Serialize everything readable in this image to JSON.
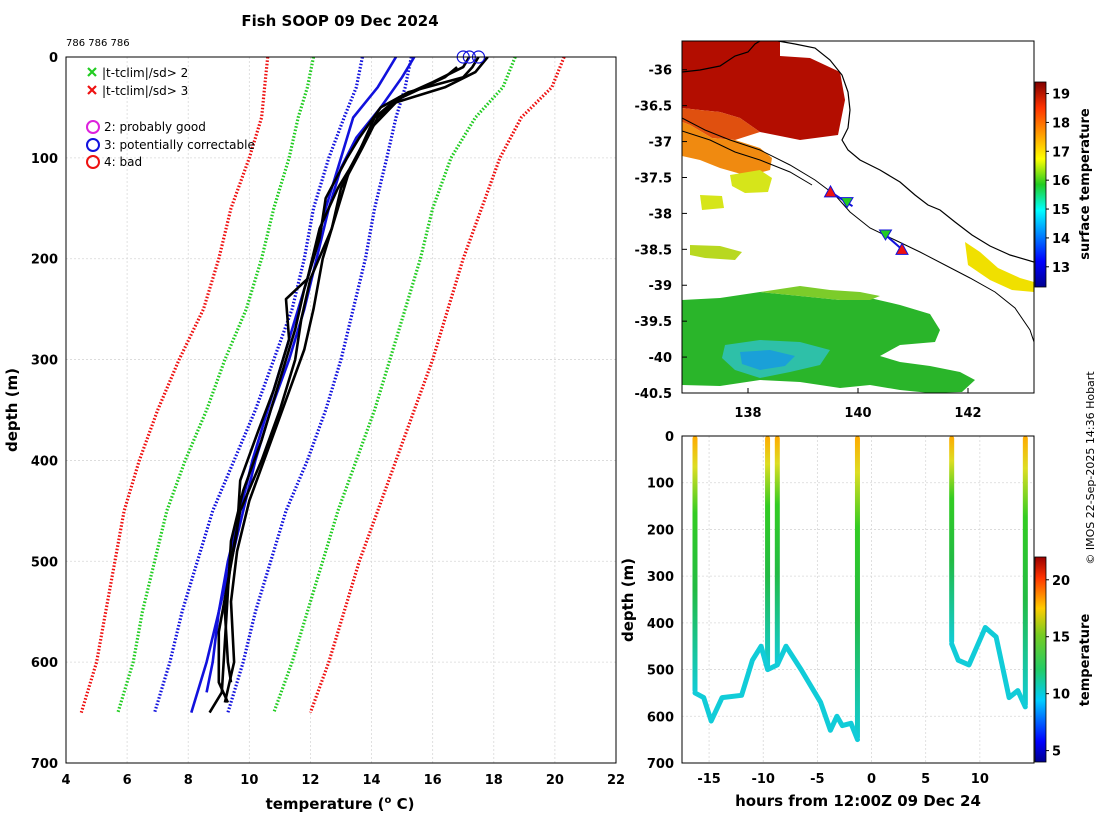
{
  "title": "Fish SOOP 09 Dec 2024",
  "profile_ids": "786 786 786",
  "credit": "© IMOS 22-Sep-2025 14:36 Hobart",
  "colors": {
    "red": "#ee1111",
    "green": "#22cc22",
    "blue": "#1111dd",
    "magenta": "#dd22dd",
    "black": "#000000",
    "cyan": "#11ccd8"
  },
  "legend": {
    "crosses": [
      {
        "label": "|t-tclim|/sd> 2",
        "color": "#22cc22"
      },
      {
        "label": "|t-tclim|/sd> 3",
        "color": "#ee1111"
      }
    ],
    "circles": [
      {
        "label": "2: probably good",
        "color": "#dd22dd"
      },
      {
        "label": "3: potentially correctable",
        "color": "#1111dd"
      },
      {
        "label": "4: bad",
        "color": "#ee1111"
      }
    ]
  },
  "chart_data": [
    {
      "id": "profile",
      "type": "line",
      "xlabel": "temperature (",
      "xlabel_sup": "o",
      "xlabel_end": " C)",
      "ylabel": "depth (m)",
      "xlim": [
        4,
        22
      ],
      "ylim": [
        700,
        0
      ],
      "xticks": [
        "4",
        "6",
        "8",
        "10",
        "12",
        "14",
        "16",
        "18",
        "20",
        "22"
      ],
      "yticks": [
        "0",
        "100",
        "200",
        "300",
        "400",
        "500",
        "600",
        "700"
      ],
      "grid": true,
      "envelopes": [
        {
          "name": "-3sd",
          "color": "#ee1111",
          "points": [
            [
              10.6,
              0
            ],
            [
              10.5,
              30
            ],
            [
              10.4,
              60
            ],
            [
              10.0,
              100
            ],
            [
              9.4,
              150
            ],
            [
              9.0,
              200
            ],
            [
              8.5,
              250
            ],
            [
              7.7,
              300
            ],
            [
              7.0,
              350
            ],
            [
              6.4,
              400
            ],
            [
              5.9,
              450
            ],
            [
              5.6,
              500
            ],
            [
              5.3,
              550
            ],
            [
              5.0,
              600
            ],
            [
              4.5,
              650
            ]
          ]
        },
        {
          "name": "-2sd",
          "color": "#22cc22",
          "points": [
            [
              12.1,
              0
            ],
            [
              11.9,
              30
            ],
            [
              11.6,
              60
            ],
            [
              11.3,
              100
            ],
            [
              10.8,
              150
            ],
            [
              10.4,
              200
            ],
            [
              9.9,
              250
            ],
            [
              9.2,
              300
            ],
            [
              8.6,
              350
            ],
            [
              7.9,
              400
            ],
            [
              7.3,
              450
            ],
            [
              6.9,
              500
            ],
            [
              6.5,
              550
            ],
            [
              6.2,
              600
            ],
            [
              5.7,
              650
            ]
          ]
        },
        {
          "name": "-1sd",
          "color": "#1111dd",
          "points": [
            [
              13.7,
              0
            ],
            [
              13.5,
              30
            ],
            [
              13.1,
              60
            ],
            [
              12.6,
              100
            ],
            [
              12.1,
              150
            ],
            [
              11.8,
              200
            ],
            [
              11.4,
              250
            ],
            [
              10.8,
              300
            ],
            [
              10.2,
              350
            ],
            [
              9.5,
              400
            ],
            [
              8.8,
              450
            ],
            [
              8.3,
              500
            ],
            [
              7.8,
              550
            ],
            [
              7.4,
              600
            ],
            [
              6.9,
              650
            ]
          ]
        },
        {
          "name": "+1sd",
          "color": "#1111dd",
          "points": [
            [
              15.3,
              0
            ],
            [
              15.1,
              30
            ],
            [
              14.8,
              60
            ],
            [
              14.5,
              100
            ],
            [
              14.1,
              150
            ],
            [
              13.8,
              200
            ],
            [
              13.4,
              250
            ],
            [
              13.0,
              300
            ],
            [
              12.5,
              350
            ],
            [
              11.9,
              400
            ],
            [
              11.2,
              450
            ],
            [
              10.7,
              500
            ],
            [
              10.2,
              550
            ],
            [
              9.8,
              600
            ],
            [
              9.3,
              650
            ]
          ]
        },
        {
          "name": "+2sd",
          "color": "#22cc22",
          "points": [
            [
              18.7,
              0
            ],
            [
              18.3,
              30
            ],
            [
              17.4,
              60
            ],
            [
              16.6,
              100
            ],
            [
              16.0,
              150
            ],
            [
              15.6,
              200
            ],
            [
              15.1,
              250
            ],
            [
              14.6,
              300
            ],
            [
              14.1,
              350
            ],
            [
              13.5,
              400
            ],
            [
              12.9,
              450
            ],
            [
              12.4,
              500
            ],
            [
              11.9,
              550
            ],
            [
              11.4,
              600
            ],
            [
              10.8,
              650
            ]
          ]
        },
        {
          "name": "+3sd",
          "color": "#ee1111",
          "points": [
            [
              20.3,
              0
            ],
            [
              19.9,
              30
            ],
            [
              18.9,
              60
            ],
            [
              18.2,
              100
            ],
            [
              17.6,
              150
            ],
            [
              17.0,
              200
            ],
            [
              16.5,
              250
            ],
            [
              16.0,
              300
            ],
            [
              15.4,
              350
            ],
            [
              14.8,
              400
            ],
            [
              14.2,
              450
            ],
            [
              13.6,
              500
            ],
            [
              13.1,
              550
            ],
            [
              12.6,
              600
            ],
            [
              12.0,
              650
            ]
          ]
        }
      ],
      "means": [
        {
          "name": "climatology",
          "color": "#1111dd",
          "points": [
            [
              15.4,
              0
            ],
            [
              15.0,
              20
            ],
            [
              14.3,
              50
            ],
            [
              13.5,
              80
            ],
            [
              13.0,
              110
            ],
            [
              12.6,
              150
            ],
            [
              12.2,
              200
            ],
            [
              11.8,
              250
            ],
            [
              11.3,
              300
            ],
            [
              10.7,
              350
            ],
            [
              10.2,
              400
            ],
            [
              9.8,
              450
            ],
            [
              9.4,
              500
            ],
            [
              9.0,
              550
            ],
            [
              8.6,
              600
            ],
            [
              8.1,
              650
            ]
          ]
        },
        {
          "name": "climatology-alt",
          "color": "#1111dd",
          "points": [
            [
              14.8,
              0
            ],
            [
              14.2,
              30
            ],
            [
              13.4,
              60
            ],
            [
              13.0,
              100
            ],
            [
              12.5,
              150
            ],
            [
              12.1,
              200
            ],
            [
              11.6,
              250
            ],
            [
              11.1,
              300
            ],
            [
              10.6,
              350
            ],
            [
              10.1,
              400
            ],
            [
              9.7,
              450
            ],
            [
              9.3,
              500
            ],
            [
              9.0,
              550
            ],
            [
              8.8,
              600
            ],
            [
              8.6,
              630
            ]
          ]
        }
      ],
      "profiles": [
        {
          "name": "profile-1",
          "color": "#000000",
          "points": [
            [
              17.5,
              0
            ],
            [
              17.3,
              10
            ],
            [
              17.0,
              20
            ],
            [
              15.2,
              35
            ],
            [
              14.3,
              50
            ],
            [
              13.6,
              80
            ],
            [
              13.2,
              100
            ],
            [
              12.5,
              140
            ],
            [
              12.3,
              180
            ],
            [
              11.8,
              230
            ],
            [
              11.5,
              270
            ],
            [
              11.0,
              320
            ],
            [
              10.4,
              380
            ],
            [
              9.8,
              430
            ],
            [
              9.4,
              480
            ],
            [
              9.3,
              530
            ],
            [
              9.2,
              580
            ],
            [
              9.1,
              630
            ],
            [
              8.7,
              650
            ]
          ]
        },
        {
          "name": "profile-2",
          "color": "#000000",
          "points": [
            [
              17.8,
              0
            ],
            [
              17.4,
              15
            ],
            [
              16.4,
              30
            ],
            [
              14.8,
              45
            ],
            [
              14.0,
              70
            ],
            [
              13.3,
              110
            ],
            [
              12.9,
              150
            ],
            [
              12.4,
              200
            ],
            [
              12.1,
              250
            ],
            [
              11.8,
              290
            ],
            [
              11.2,
              340
            ],
            [
              10.6,
              390
            ],
            [
              10.0,
              440
            ],
            [
              9.6,
              490
            ],
            [
              9.4,
              540
            ],
            [
              9.5,
              600
            ],
            [
              9.2,
              640
            ]
          ]
        },
        {
          "name": "profile-3",
          "color": "#000000",
          "points": [
            [
              17.2,
              0
            ],
            [
              17.0,
              10
            ],
            [
              16.0,
              25
            ],
            [
              14.9,
              40
            ],
            [
              14.1,
              60
            ],
            [
              13.5,
              100
            ],
            [
              12.9,
              130
            ],
            [
              12.3,
              170
            ],
            [
              11.9,
              220
            ],
            [
              11.2,
              240
            ],
            [
              11.3,
              280
            ],
            [
              10.8,
              330
            ],
            [
              10.3,
              370
            ],
            [
              9.7,
              420
            ],
            [
              9.6,
              470
            ],
            [
              9.3,
              520
            ],
            [
              9.0,
              570
            ],
            [
              9.0,
              620
            ],
            [
              9.3,
              640
            ]
          ]
        },
        {
          "name": "profile-4",
          "color": "#000000",
          "points": [
            [
              16.8,
              10
            ],
            [
              16.4,
              20
            ],
            [
              15.0,
              40
            ],
            [
              14.2,
              60
            ],
            [
              13.7,
              90
            ],
            [
              13.0,
              130
            ],
            [
              12.7,
              170
            ],
            [
              12.0,
              220
            ],
            [
              11.7,
              260
            ],
            [
              11.5,
              300
            ],
            [
              11.0,
              350
            ],
            [
              10.4,
              400
            ],
            [
              9.7,
              450
            ],
            [
              9.4,
              500
            ],
            [
              9.2,
              550
            ],
            [
              9.3,
              600
            ],
            [
              9.4,
              620
            ]
          ]
        }
      ],
      "markers": [
        {
          "name": "flag-3",
          "color": "#1111dd",
          "t": 17.0,
          "depth": 0
        },
        {
          "name": "flag-3",
          "color": "#1111dd",
          "t": 17.2,
          "depth": 0
        },
        {
          "name": "flag-3",
          "color": "#1111dd",
          "t": 17.5,
          "depth": 0
        }
      ]
    },
    {
      "id": "map",
      "type": "heatmap",
      "xticks": [
        "138",
        "140",
        "142"
      ],
      "yticks": [
        "-36",
        "-36.5",
        "-37",
        "-37.5",
        "-38",
        "-38.5",
        "-39",
        "-39.5",
        "-40",
        "-40.5"
      ],
      "xlim": [
        136.8,
        143.2
      ],
      "ylim": [
        -40.5,
        -35.6
      ],
      "colorbar_label": "surface temperature",
      "colorbar_range": [
        12.3,
        19.4
      ],
      "colorbar_ticks": [
        "13",
        "14",
        "15",
        "16",
        "17",
        "18",
        "19"
      ],
      "track": [
        [
          139.5,
          -37.7
        ],
        [
          139.9,
          -37.9
        ],
        [
          140.5,
          -38.3
        ],
        [
          140.8,
          -38.5
        ]
      ],
      "start_markers": [
        [
          139.8,
          -37.85
        ],
        [
          140.5,
          -38.3
        ]
      ],
      "end_markers": [
        [
          139.5,
          -37.7
        ],
        [
          140.8,
          -38.5
        ]
      ]
    },
    {
      "id": "section",
      "type": "area",
      "xlabel": "hours from 12:00Z 09 Dec 24",
      "ylabel": "depth (m)",
      "xlim": [
        -17.5,
        15
      ],
      "ylim": [
        700,
        0
      ],
      "xticks": [
        "-15",
        "-10",
        "-5",
        "0",
        "5",
        "10"
      ],
      "yticks": [
        "0",
        "100",
        "200",
        "300",
        "400",
        "500",
        "600",
        "700"
      ],
      "colorbar_label": "temperature",
      "colorbar_range": [
        4,
        22
      ],
      "colorbar_ticks": [
        "5",
        "10",
        "15",
        "20"
      ],
      "drops": [
        -16.3,
        -9.6,
        -8.7,
        -1.3,
        7.4,
        14.2
      ],
      "bottom": [
        [
          -16.3,
          550
        ],
        [
          -15.5,
          560
        ],
        [
          -14.8,
          610
        ],
        [
          -13.8,
          560
        ],
        [
          -12.0,
          555
        ],
        [
          -11.0,
          480
        ],
        [
          -10.2,
          450
        ],
        [
          -9.6,
          500
        ],
        [
          -8.7,
          490
        ],
        [
          -7.9,
          450
        ],
        [
          -6.5,
          500
        ],
        [
          -4.7,
          570
        ],
        [
          -3.8,
          630
        ],
        [
          -3.2,
          600
        ],
        [
          -2.7,
          620
        ],
        [
          -1.9,
          615
        ],
        [
          -1.3,
          650
        ],
        [
          7.4,
          445
        ],
        [
          8.0,
          480
        ],
        [
          9.0,
          490
        ],
        [
          10.5,
          410
        ],
        [
          11.5,
          430
        ],
        [
          12.7,
          560
        ],
        [
          13.5,
          545
        ],
        [
          14.2,
          580
        ]
      ]
    }
  ]
}
